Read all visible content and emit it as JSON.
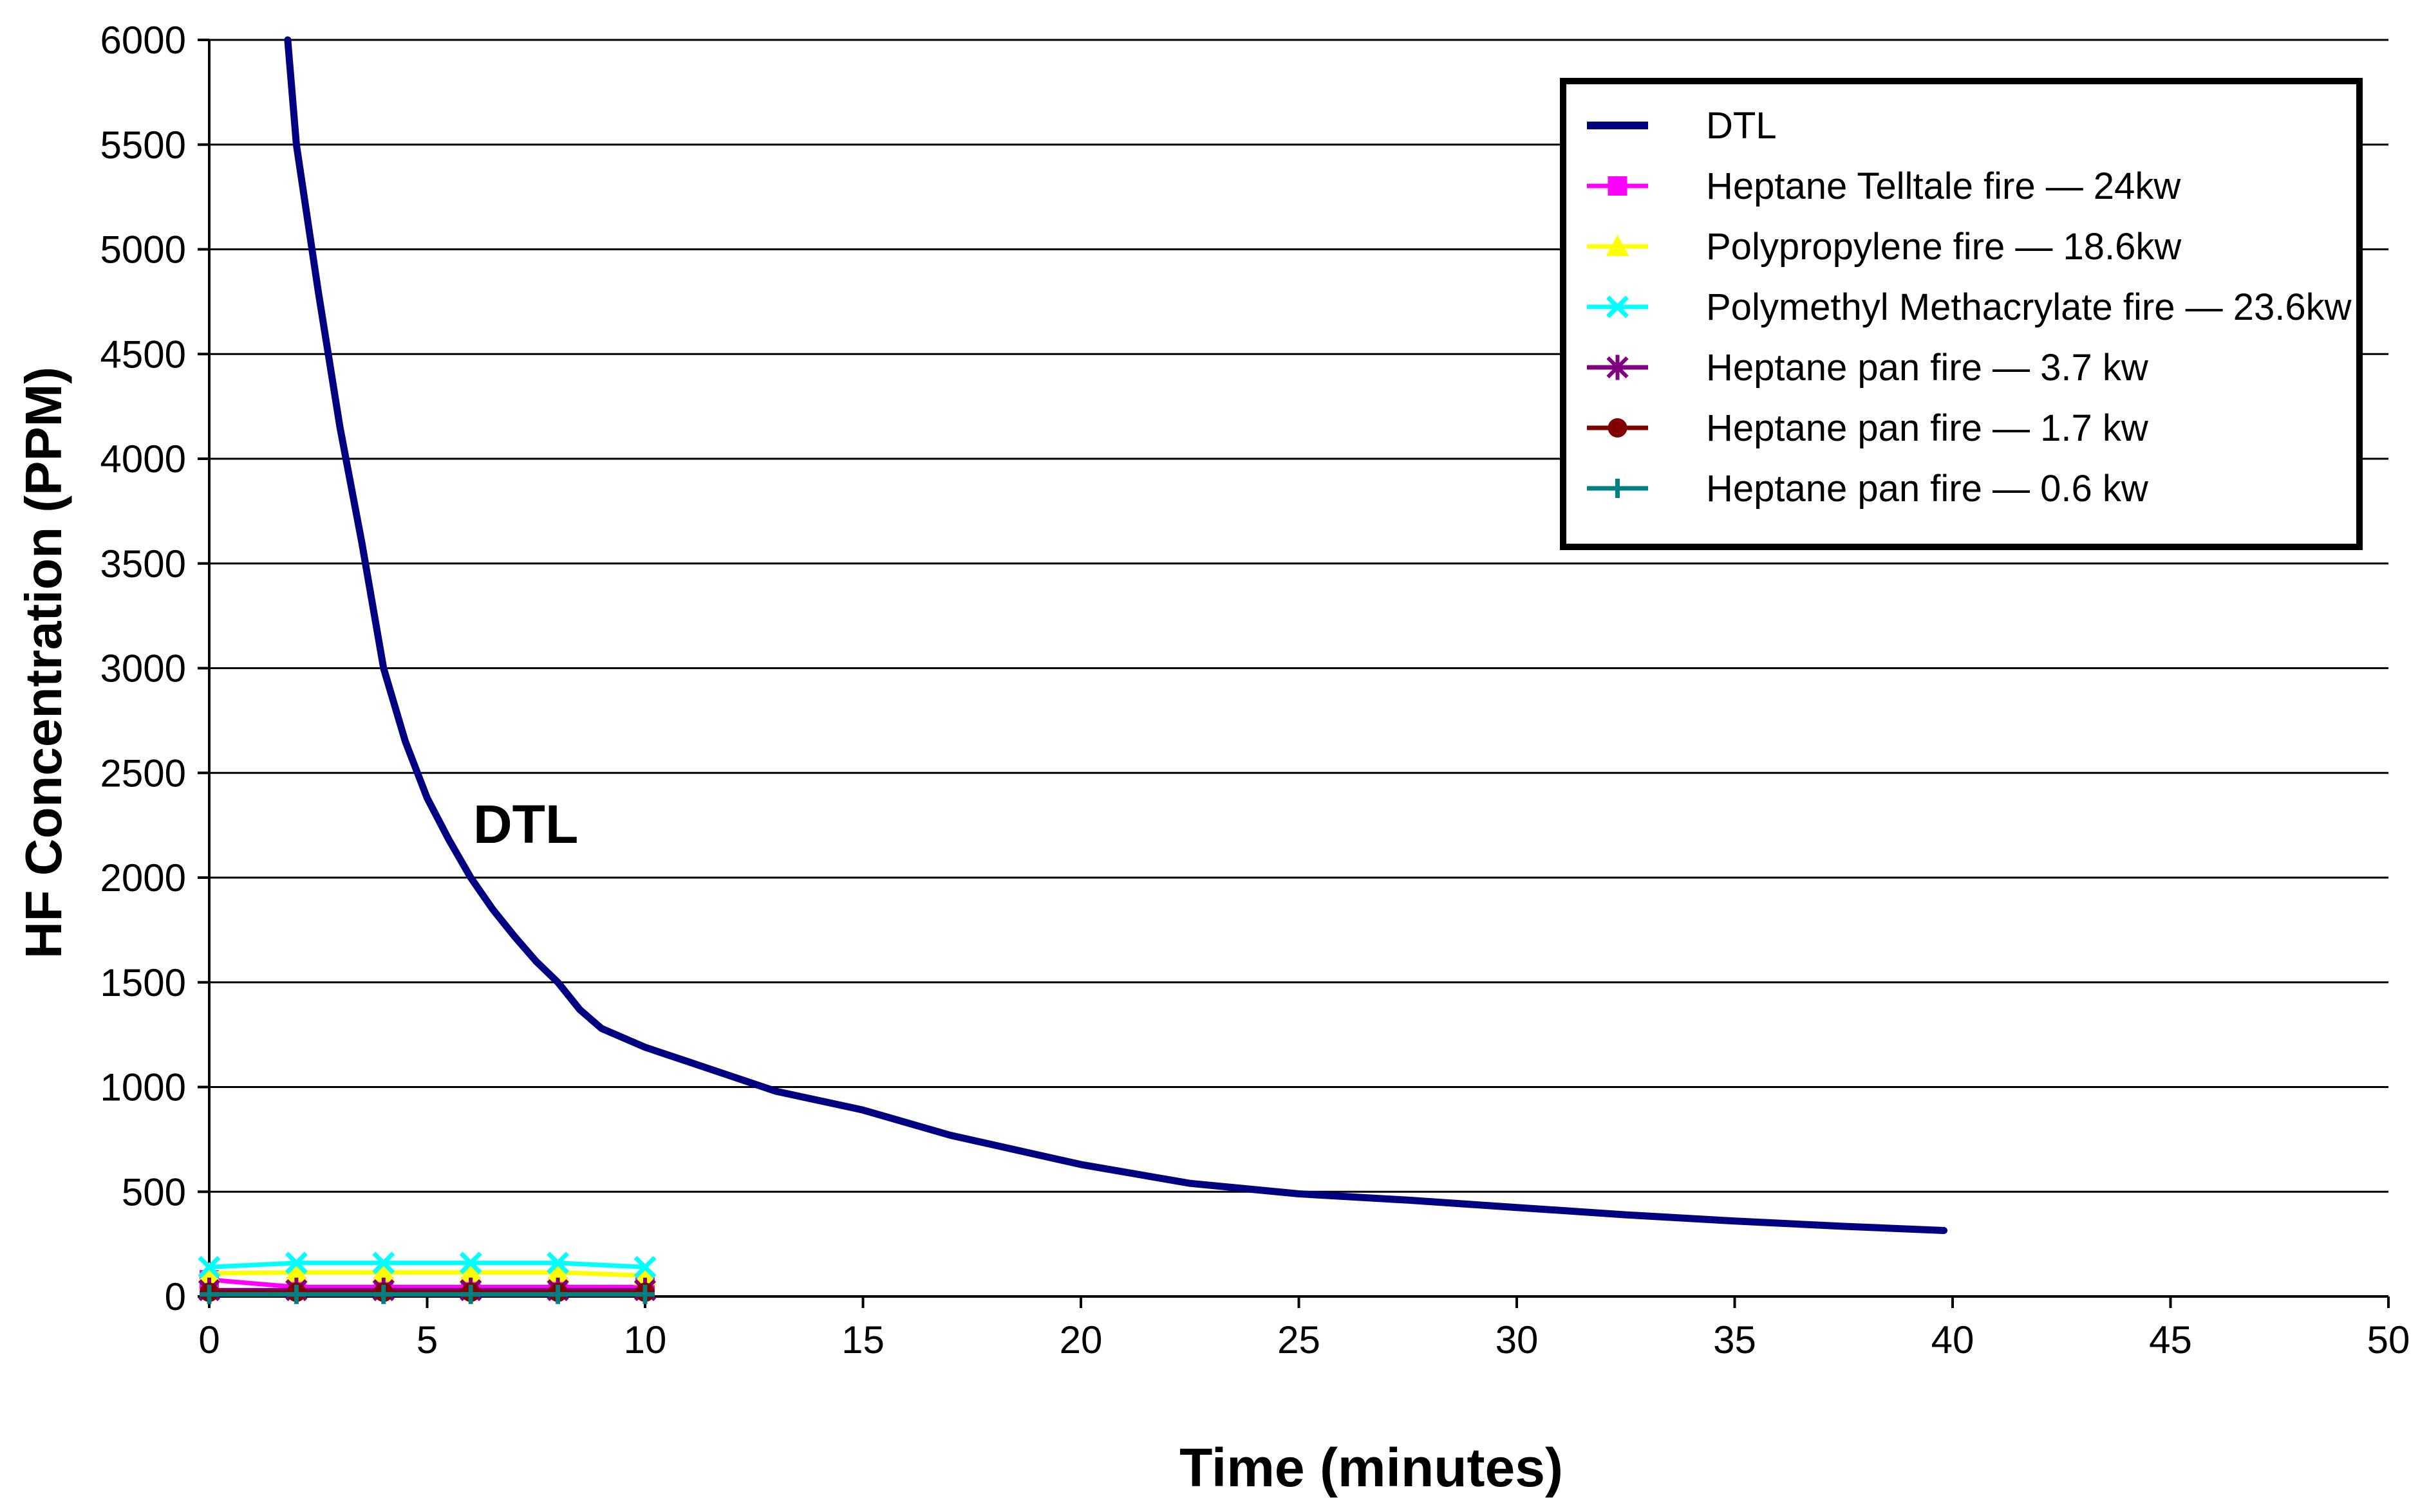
{
  "chart_data": {
    "type": "line",
    "title": "",
    "xlabel": "Time (minutes)",
    "ylabel": "HF Concentration (PPM)",
    "xlim": [
      0,
      50
    ],
    "ylim": [
      0,
      6000
    ],
    "x_ticks": [
      0,
      5,
      10,
      15,
      20,
      25,
      30,
      35,
      40,
      45,
      50
    ],
    "y_ticks": [
      0,
      500,
      1000,
      1500,
      2000,
      2500,
      3000,
      3500,
      4000,
      4500,
      5000,
      5500,
      6000
    ],
    "grid": "horizontal",
    "legend_position": "top-right",
    "annotation": "DTL",
    "series": [
      {
        "name": "DTL",
        "color": "#000080",
        "marker": "none",
        "x": [
          1.8,
          2.0,
          2.5,
          3.0,
          3.5,
          4.0,
          4.5,
          5.0,
          5.5,
          6.0,
          6.5,
          7.0,
          7.5,
          8.0,
          8.5,
          9.0,
          10.0,
          11.0,
          12.0,
          13.0,
          15.0,
          17.0,
          20.0,
          22.5,
          25.0,
          27.5,
          30.0,
          32.5,
          35.0,
          37.5,
          39.8
        ],
        "y": [
          6000,
          5500,
          4800,
          4150,
          3600,
          3000,
          2650,
          2380,
          2180,
          2000,
          1850,
          1720,
          1600,
          1500,
          1370,
          1280,
          1190,
          1120,
          1050,
          980,
          890,
          770,
          630,
          540,
          490,
          460,
          425,
          390,
          360,
          335,
          315
        ]
      },
      {
        "name": "Heptane Telltale fire — 24kw",
        "color": "#ff00ff",
        "marker": "square",
        "x": [
          0,
          2,
          4,
          6,
          8,
          10
        ],
        "y": [
          80,
          45,
          45,
          45,
          45,
          45
        ]
      },
      {
        "name": "Polypropylene fire — 18.6kw",
        "color": "#ffff00",
        "marker": "triangle",
        "x": [
          0,
          2,
          4,
          6,
          8,
          10
        ],
        "y": [
          110,
          115,
          115,
          115,
          115,
          100
        ]
      },
      {
        "name": "Polymethyl Methacrylate fire — 23.6kw",
        "color": "#00ffff",
        "marker": "x",
        "x": [
          0,
          2,
          4,
          6,
          8,
          10
        ],
        "y": [
          140,
          160,
          160,
          160,
          160,
          140
        ]
      },
      {
        "name": "Heptane pan fire — 3.7 kw",
        "color": "#800080",
        "marker": "star",
        "x": [
          0,
          2,
          4,
          6,
          8,
          10
        ],
        "y": [
          30,
          30,
          30,
          30,
          30,
          30
        ]
      },
      {
        "name": "Heptane pan fire — 1.7 kw",
        "color": "#800000",
        "marker": "circle",
        "x": [
          0,
          2,
          4,
          6,
          8,
          10
        ],
        "y": [
          20,
          20,
          20,
          20,
          20,
          20
        ]
      },
      {
        "name": "Heptane pan fire — 0.6 kw",
        "color": "#008080",
        "marker": "plus",
        "x": [
          0,
          2,
          4,
          6,
          8,
          10
        ],
        "y": [
          10,
          10,
          10,
          10,
          10,
          10
        ]
      }
    ]
  }
}
